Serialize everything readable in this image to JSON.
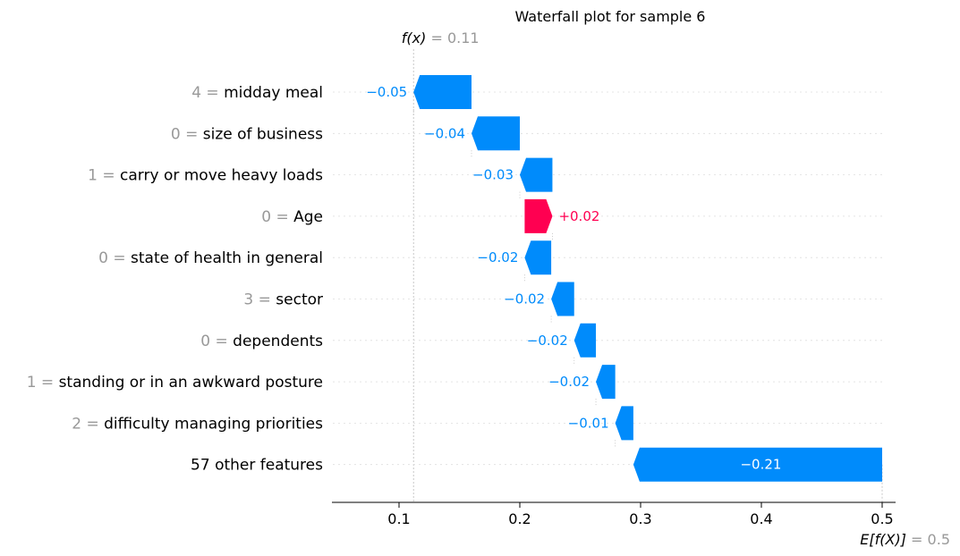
{
  "chart_data": {
    "type": "waterfall",
    "title": "Waterfall plot for sample 6",
    "fx_label": "f(x)",
    "fx_value": "0.11",
    "efx_label": "E[f(X)]",
    "efx_value": "0.5",
    "fx": 0.112,
    "base_value": 0.5,
    "features": [
      {
        "value": "4",
        "name": "midday meal",
        "start": 0.16,
        "contribution": -0.048,
        "label": "−0.05"
      },
      {
        "value": "0",
        "name": "size of business",
        "start": 0.2,
        "contribution": -0.04,
        "label": "−0.04"
      },
      {
        "value": "1",
        "name": "carry or move heavy loads",
        "start": 0.227,
        "contribution": -0.027,
        "label": "−0.03"
      },
      {
        "value": "0",
        "name": "Age",
        "start": 0.204,
        "contribution": 0.023,
        "label": "+0.02"
      },
      {
        "value": "0",
        "name": "state of health in general",
        "start": 0.226,
        "contribution": -0.022,
        "label": "−0.02"
      },
      {
        "value": "3",
        "name": "sector",
        "start": 0.245,
        "contribution": -0.019,
        "label": "−0.02"
      },
      {
        "value": "0",
        "name": "dependents",
        "start": 0.263,
        "contribution": -0.018,
        "label": "−0.02"
      },
      {
        "value": "1",
        "name": "standing or in an awkward posture",
        "start": 0.279,
        "contribution": -0.016,
        "label": "−0.02"
      },
      {
        "value": "2",
        "name": "difficulty managing priorities",
        "start": 0.294,
        "contribution": -0.015,
        "label": "−0.01"
      },
      {
        "value": "",
        "name": "57 other features",
        "start": 0.5,
        "contribution": -0.206,
        "label": "−0.21"
      }
    ],
    "xticks": [
      "0.1",
      "0.2",
      "0.3",
      "0.4",
      "0.5"
    ],
    "xlim": [
      0.042,
      0.51
    ],
    "colors": {
      "negative": "#008bfb",
      "positive": "#ff0051",
      "axis": "#000000",
      "guide": "#bbbbbb",
      "muted": "#999999"
    }
  }
}
